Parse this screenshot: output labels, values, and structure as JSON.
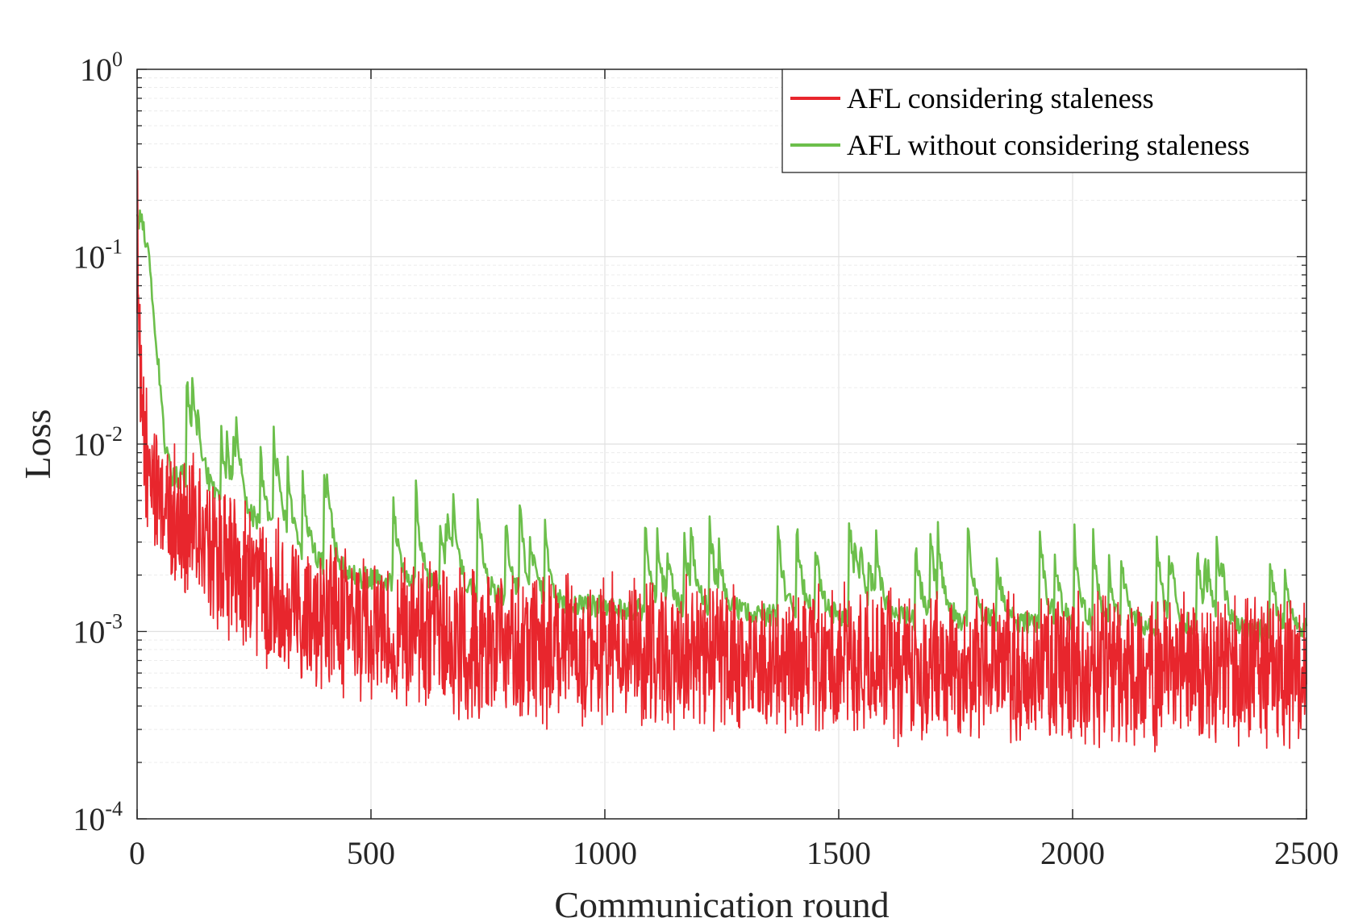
{
  "chart_data": {
    "type": "line",
    "xlabel": "Communication round",
    "ylabel": "Loss",
    "xlim": [
      0,
      2500
    ],
    "ylim": [
      0.0001,
      1
    ],
    "yscale": "log",
    "grid": true,
    "legend_position": "top-right",
    "x_ticks": [
      {
        "value": 0,
        "label": "0"
      },
      {
        "value": 500,
        "label": "500"
      },
      {
        "value": 1000,
        "label": "1000"
      },
      {
        "value": 1500,
        "label": "1500"
      },
      {
        "value": 2000,
        "label": "2000"
      },
      {
        "value": 2500,
        "label": "2500"
      }
    ],
    "y_ticks": [
      {
        "value": 1,
        "base": "10",
        "exp": "0"
      },
      {
        "value": 0.1,
        "base": "10",
        "exp": "-1"
      },
      {
        "value": 0.01,
        "base": "10",
        "exp": "-2"
      },
      {
        "value": 0.001,
        "base": "10",
        "exp": "-3"
      },
      {
        "value": 0.0001,
        "base": "10",
        "exp": "-4"
      }
    ],
    "series": [
      {
        "name": "AFL considering staleness",
        "color": "#e8262d",
        "noise": 0.35,
        "x": [
          0,
          2,
          5,
          10,
          20,
          40,
          60,
          80,
          100,
          150,
          200,
          250,
          300,
          350,
          400,
          450,
          500,
          550,
          600,
          650,
          700,
          800,
          900,
          1000,
          1100,
          1200,
          1300,
          1400,
          1500,
          1600,
          1700,
          1800,
          1900,
          2000,
          2100,
          2200,
          2300,
          2400,
          2500
        ],
        "y": [
          0.09,
          0.16,
          0.03,
          0.011,
          0.008,
          0.0055,
          0.0045,
          0.004,
          0.0038,
          0.0028,
          0.0023,
          0.0019,
          0.0016,
          0.0014,
          0.0012,
          0.0011,
          0.00105,
          0.00098,
          0.00092,
          0.00088,
          0.00085,
          0.00082,
          0.0008,
          0.00078,
          0.00075,
          0.00073,
          0.0007,
          0.00068,
          0.00067,
          0.00066,
          0.00065,
          0.00064,
          0.00063,
          0.00062,
          0.00062,
          0.00061,
          0.0006,
          0.0006,
          0.0006
        ]
      },
      {
        "name": "AFL without considering staleness",
        "color": "#6cbf4b",
        "noise": 0.12,
        "x": [
          0,
          10,
          25,
          40,
          50,
          60,
          75,
          100,
          130,
          150,
          200,
          250,
          300,
          350,
          400,
          450,
          500,
          600,
          700,
          800,
          900,
          1000,
          1100,
          1200,
          1300,
          1400,
          1500,
          1600,
          1700,
          1800,
          1900,
          2000,
          2100,
          2200,
          2300,
          2400,
          2500
        ],
        "y": [
          0.17,
          0.15,
          0.1,
          0.035,
          0.02,
          0.01,
          0.0065,
          0.0068,
          0.0062,
          0.0058,
          0.0045,
          0.0038,
          0.003,
          0.0025,
          0.0022,
          0.002,
          0.0019,
          0.0017,
          0.0016,
          0.0015,
          0.0014,
          0.00135,
          0.0013,
          0.00128,
          0.00125,
          0.0012,
          0.0012,
          0.00118,
          0.00115,
          0.00113,
          0.0011,
          0.00108,
          0.00106,
          0.00104,
          0.00102,
          0.001,
          0.001
        ]
      }
    ]
  }
}
